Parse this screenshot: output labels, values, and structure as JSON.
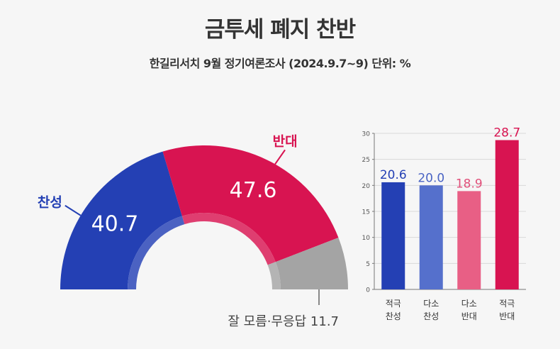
{
  "title": "금투세 폐지 찬반",
  "subtitle": "한길리서치 9월 정기여론조사 (2024.9.7~9) 단위: %",
  "colors": {
    "support": "#2440b4",
    "oppose": "#d81451",
    "unknown": "#a4a4a4",
    "strong_support": "#2440b4",
    "weak_support": "#5570cc",
    "weak_oppose": "#e85f85",
    "strong_oppose": "#d81451"
  },
  "chart_data": [
    {
      "type": "pie",
      "shape": "half-donut",
      "slices": [
        {
          "label": "찬성",
          "value": 40.7,
          "value_label": "40.7",
          "color": "#2440b4"
        },
        {
          "label": "반대",
          "value": 47.6,
          "value_label": "47.6",
          "color": "#d81451"
        },
        {
          "label": "잘 모름·무응답",
          "value": 11.7,
          "value_label": "11.7",
          "color": "#a4a4a4"
        }
      ]
    },
    {
      "type": "bar",
      "categories": [
        {
          "line1": "적극",
          "line2": "찬성"
        },
        {
          "line1": "다소",
          "line2": "찬성"
        },
        {
          "line1": "다소",
          "line2": "반대"
        },
        {
          "line1": "적극",
          "line2": "반대"
        }
      ],
      "values": [
        20.6,
        20.0,
        18.9,
        28.7
      ],
      "value_labels": [
        "20.6",
        "20.0",
        "18.9",
        "28.7"
      ],
      "colors": [
        "#2440b4",
        "#5570cc",
        "#e85f85",
        "#d81451"
      ],
      "label_colors": [
        "#2440b4",
        "#4a64c4",
        "#e0507a",
        "#d81451"
      ],
      "ylim": [
        0,
        30
      ],
      "yticks": [
        "0",
        "5",
        "10",
        "15",
        "20",
        "25",
        "30"
      ]
    }
  ]
}
